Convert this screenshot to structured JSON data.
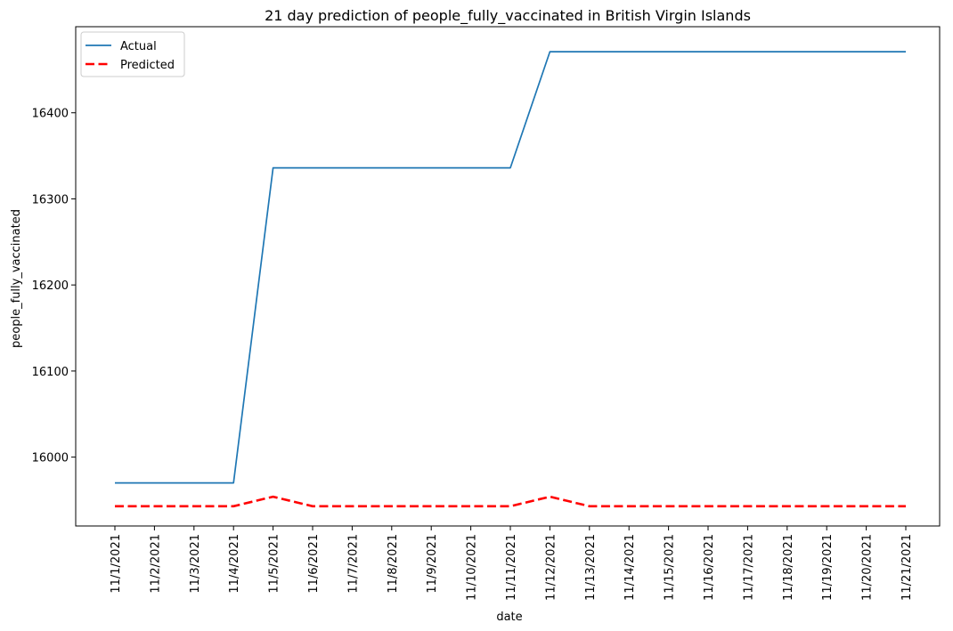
{
  "chart_data": {
    "type": "line",
    "title": "21 day prediction of people_fully_vaccinated in British Virgin Islands",
    "xlabel": "date",
    "ylabel": "people_fully_vaccinated",
    "categories": [
      "11/1/2021",
      "11/2/2021",
      "11/3/2021",
      "11/4/2021",
      "11/5/2021",
      "11/6/2021",
      "11/7/2021",
      "11/8/2021",
      "11/9/2021",
      "11/10/2021",
      "11/11/2021",
      "11/12/2021",
      "11/13/2021",
      "11/14/2021",
      "11/15/2021",
      "11/16/2021",
      "11/17/2021",
      "11/18/2021",
      "11/19/2021",
      "11/20/2021",
      "11/21/2021"
    ],
    "yticks": [
      16000,
      16100,
      16200,
      16300,
      16400
    ],
    "ylim": [
      15920,
      16500
    ],
    "grid": false,
    "legend_position": "upper-left",
    "series": [
      {
        "name": "Actual",
        "color": "#1f77b4",
        "style": "solid",
        "values": [
          15970,
          15970,
          15970,
          15970,
          16336,
          16336,
          16336,
          16336,
          16336,
          16336,
          16336,
          16471,
          16471,
          16471,
          16471,
          16471,
          16471,
          16471,
          16471,
          16471,
          16471
        ]
      },
      {
        "name": "Predicted",
        "color": "#ff0000",
        "style": "dashed",
        "values": [
          15943,
          15943,
          15943,
          15943,
          15954,
          15943,
          15943,
          15943,
          15943,
          15943,
          15943,
          15954,
          15943,
          15943,
          15943,
          15943,
          15943,
          15943,
          15943,
          15943,
          15943
        ]
      }
    ]
  }
}
